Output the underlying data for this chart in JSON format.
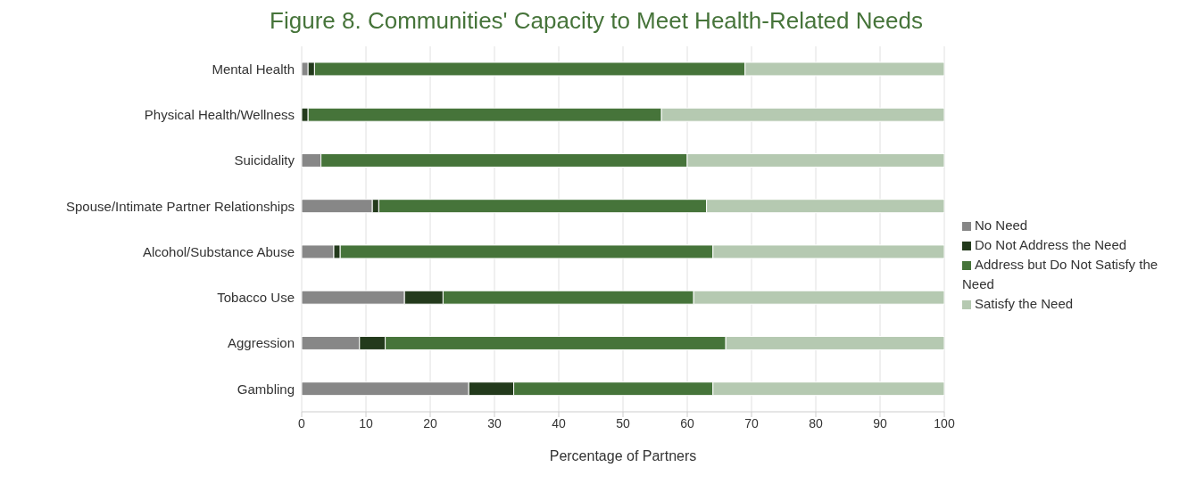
{
  "chart_data": {
    "type": "bar",
    "orientation": "horizontal",
    "stacked": true,
    "title": "Figure 8. Communities' Capacity to Meet Health-Related Needs",
    "xlabel": "Percentage of Partners",
    "categories": [
      "Mental Health",
      "Physical Health/Wellness",
      "Suicidality",
      "Spouse/Intimate Partner Relationships",
      "Alcohol/Substance Abuse",
      "Tobacco Use",
      "Aggression",
      "Gambling"
    ],
    "series": [
      {
        "name": "No Need",
        "color": "#878787",
        "values": [
          1,
          0,
          3,
          11,
          5,
          16,
          9,
          26
        ]
      },
      {
        "name": "Do Not Address the Need",
        "color": "#233a1c",
        "values": [
          1,
          1,
          0,
          1,
          1,
          6,
          4,
          7
        ]
      },
      {
        "name": "Address but Do Not Satisfy the Need",
        "color": "#46743a",
        "values": [
          67,
          55,
          57,
          51,
          58,
          39,
          53,
          31
        ]
      },
      {
        "name": "Satisfy the Need",
        "color": "#b5c9b1",
        "values": [
          31,
          44,
          40,
          37,
          36,
          39,
          34,
          36
        ]
      }
    ],
    "xlim": [
      0,
      100
    ],
    "xticks": [
      0,
      10,
      20,
      30,
      40,
      50,
      60,
      70,
      80,
      90,
      100
    ],
    "grid": "x",
    "legend": "right"
  }
}
